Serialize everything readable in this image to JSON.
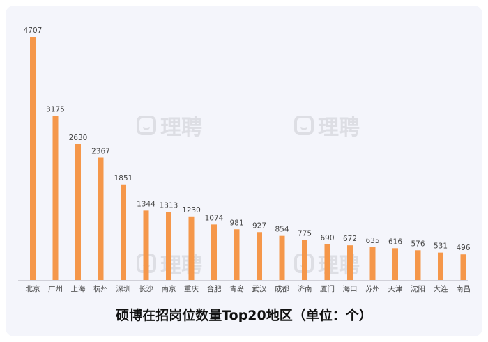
{
  "watermark": "理聘",
  "chart_data": {
    "type": "bar",
    "title": "硕博在招岗位数量Top20地区（单位：个）",
    "categories": [
      "北京",
      "广州",
      "上海",
      "杭州",
      "深圳",
      "长沙",
      "南京",
      "重庆",
      "合肥",
      "青岛",
      "武汉",
      "成都",
      "济南",
      "厦门",
      "海口",
      "苏州",
      "天津",
      "沈阳",
      "大连",
      "南昌"
    ],
    "values": [
      4707,
      3175,
      2630,
      2367,
      1851,
      1344,
      1313,
      1230,
      1074,
      981,
      927,
      854,
      775,
      690,
      672,
      635,
      616,
      576,
      531,
      496
    ],
    "ylim": [
      0,
      4707
    ],
    "grid": false,
    "colors": {
      "bar": "#f5974a",
      "axis": "#d0d0d8",
      "label": "#444444"
    }
  }
}
